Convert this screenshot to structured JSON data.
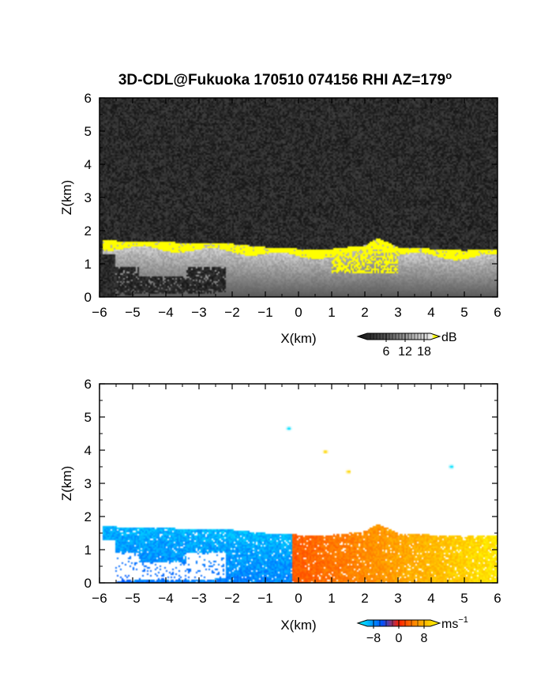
{
  "title": "3D-CDL@Fukuoka 170510 074156 RHI AZ=179",
  "title_sup": "o",
  "chart_data": [
    {
      "type": "heatmap",
      "name": "snr",
      "xlabel": "X(km)",
      "ylabel": "Z(km)",
      "xlim": [
        -6,
        6
      ],
      "ylim": [
        0,
        6
      ],
      "xticks": [
        "-6",
        "-5",
        "-4",
        "-3",
        "-2",
        "-1",
        "0",
        "1",
        "2",
        "3",
        "4",
        "5",
        "6"
      ],
      "yticks": [
        "0",
        "1",
        "2",
        "3",
        "4",
        "5",
        "6"
      ],
      "colorbar": {
        "unit": "dB",
        "ticks": [
          "6",
          "12",
          "18"
        ],
        "range": [
          0,
          20
        ]
      },
      "colors": {
        "low": "#1a1a1a",
        "high": "#e0e0e0",
        "saturated": "#ffff00"
      },
      "layer_top_km": [
        [
          -5.8,
          1.7
        ],
        [
          -4,
          1.65
        ],
        [
          -2,
          1.6
        ],
        [
          -1,
          1.5
        ],
        [
          0,
          1.45
        ],
        [
          1,
          1.45
        ],
        [
          2,
          1.55
        ],
        [
          2.4,
          1.78
        ],
        [
          3,
          1.5
        ],
        [
          4,
          1.45
        ],
        [
          5,
          1.4
        ],
        [
          6,
          1.45
        ]
      ]
    },
    {
      "type": "heatmap",
      "name": "doppler",
      "xlabel": "X(km)",
      "ylabel": "Z(km)",
      "xlim": [
        -6,
        6
      ],
      "ylim": [
        0,
        6
      ],
      "xticks": [
        "-6",
        "-5",
        "-4",
        "-3",
        "-2",
        "-1",
        "0",
        "1",
        "2",
        "3",
        "4",
        "5",
        "6"
      ],
      "yticks": [
        "0",
        "1",
        "2",
        "3",
        "4",
        "5",
        "6"
      ],
      "colorbar": {
        "unit": "ms",
        "unit_sup": "−1",
        "ticks": [
          "−8",
          "0",
          "8"
        ],
        "range": [
          -10,
          10
        ]
      },
      "colors": {
        "neg_far": "#00ffff",
        "neg": "#0050ff",
        "zero": "#ff2000",
        "pos": "#ff8c00",
        "pos_far": "#ffff00"
      },
      "isolated_points": [
        [
          -0.3,
          4.65
        ],
        [
          0.8,
          3.95
        ],
        [
          1.5,
          3.35
        ],
        [
          4.6,
          3.5
        ]
      ]
    }
  ]
}
